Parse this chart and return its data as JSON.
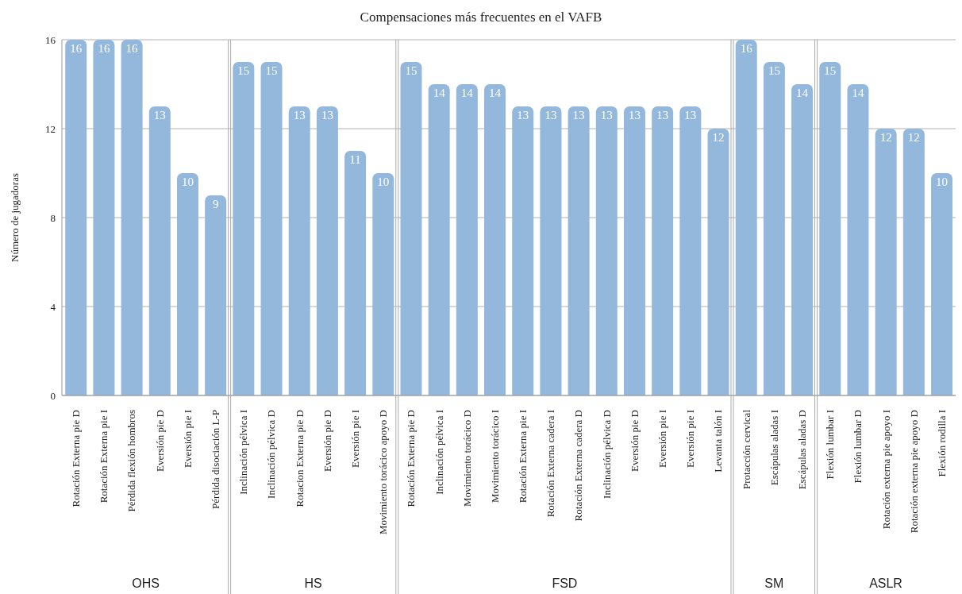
{
  "chart_data": {
    "type": "bar",
    "title": "Compensaciones más frecuentes en el VAFB",
    "ylabel": "Número de jugadoras",
    "categories": [
      "Rotación Externa pie D",
      "Rotación Externa pie I",
      "Pérdida flexión hombros",
      "Eversión pie D",
      "Eversión pie I",
      "Pérdida disociación L-P",
      "Inclinación pélvica I",
      "Inclinación pélvica D",
      "Rotacion Externa pie D",
      "Eversión pie D",
      "Eversión pie I",
      "Movimiento torácico apoyo D",
      "Rotación Externa pie D",
      "Inclinación pélvica I",
      "Movimiento torácico D",
      "Movimiento torácico I",
      "Rotación Externa pie I",
      "Rotación Externa cadera I",
      "Rotación Externa cadera D",
      "Inclinación pélvica D",
      "Eversión pie D",
      "Eversión pie I",
      "Eversión pie I",
      "Levanta talón I",
      "Protacción cervical",
      "Escápulas aladas I",
      "Escápulas aladas D",
      "Flexión lumbar I",
      "Flexión lumbar D",
      "Rotación externa pie apoyo I",
      "Rotación externa pie apoyo D",
      "Flexión rodilla I"
    ],
    "values": [
      16,
      16,
      16,
      13,
      10,
      9,
      15,
      15,
      13,
      13,
      11,
      10,
      15,
      14,
      14,
      14,
      13,
      13,
      13,
      13,
      13,
      13,
      13,
      12,
      16,
      15,
      14,
      15,
      14,
      12,
      12,
      10
    ],
    "color": "#93b8dc",
    "data_labels": true,
    "ylim": [
      0,
      16
    ],
    "yticks": [
      0,
      4,
      8,
      12,
      16
    ],
    "grid": "y",
    "annotations": [
      "OHS",
      "HS",
      "FSD",
      "SM",
      "ASLR"
    ]
  }
}
